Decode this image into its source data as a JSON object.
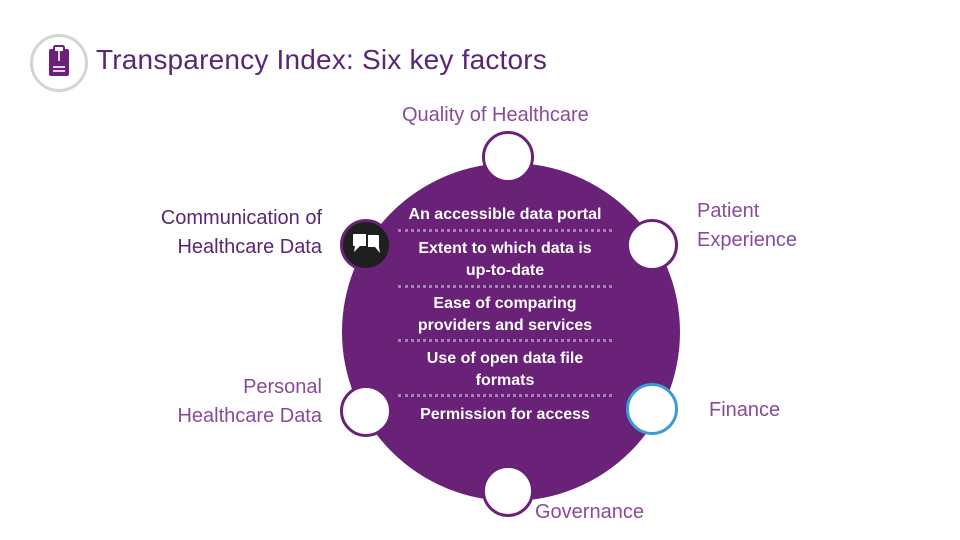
{
  "title": "Transparency Index: Six key factors",
  "colors": {
    "primary_purple": "#6a2178",
    "title_purple": "#5a2575",
    "label_purple": "#8a4a9b",
    "accent_blue": "#3e9ad3"
  },
  "icons": {
    "title": "clipboard-icon",
    "communication": "speech-bubbles-icon"
  },
  "key_areas": {
    "quality": "Quality of Healthcare",
    "communication_line1": "Communication of",
    "communication_line2": "Healthcare Data",
    "patient_line1": "Patient",
    "patient_line2": "Experience",
    "personal_line1": "Personal",
    "personal_line2": "Healthcare Data",
    "finance": "Finance",
    "governance": "Governance"
  },
  "factors": {
    "f1": "An accessible data portal",
    "f2_line1": "Extent to which data is",
    "f2_line2": "up-to-date",
    "f3_line1": "Ease of comparing",
    "f3_line2": "providers and services",
    "f4_line1": "Use of open data file",
    "f4_line2": "formats",
    "f5": "Permission for access"
  }
}
